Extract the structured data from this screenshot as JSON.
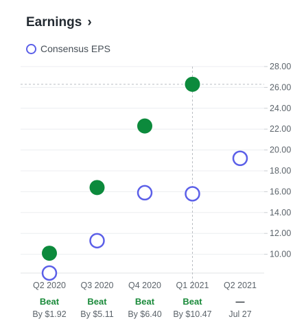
{
  "header": {
    "title": "Earnings"
  },
  "colors": {
    "estimate": "#5b5fe8",
    "actual": "#0c8a3c",
    "beat_text": "#1a8a3a"
  },
  "chart_data": {
    "type": "scatter",
    "title": "Earnings",
    "legend": [
      "Consensus EPS"
    ],
    "legend_position": "top-left",
    "categories": [
      "Q2 2020",
      "Q3 2020",
      "Q4 2020",
      "Q1 2021",
      "Q2 2021"
    ],
    "series": [
      {
        "name": "Consensus EPS",
        "values": [
          8.2,
          11.3,
          15.9,
          15.8,
          19.2
        ]
      },
      {
        "values": [
          10.1,
          16.4,
          22.3,
          26.3,
          null
        ]
      }
    ],
    "status": [
      "Beat",
      "Beat",
      "Beat",
      "Beat",
      "—"
    ],
    "details": [
      "By $1.92",
      "By $5.11",
      "By $6.40",
      "By $10.47",
      "Jul 27"
    ],
    "yticks": [
      "10.00",
      "12.00",
      "14.00",
      "16.00",
      "18.00",
      "20.00",
      "22.00",
      "24.00",
      "26.00",
      "28.00"
    ],
    "ylim": [
      8,
      28
    ],
    "y_axis_side": "right",
    "highlight": {
      "category": "Q1 2021",
      "value": 26.3
    }
  }
}
